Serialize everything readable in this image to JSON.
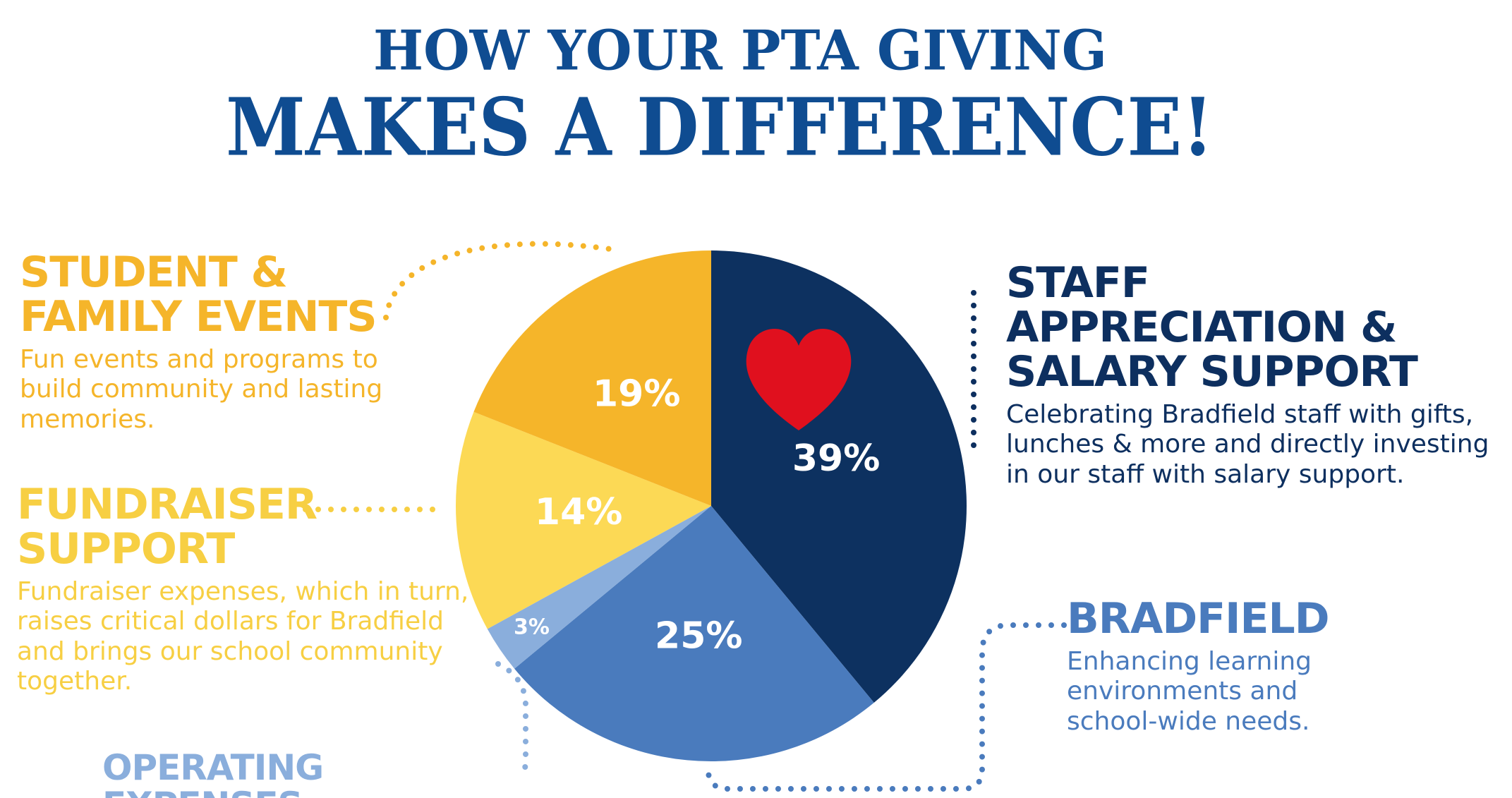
{
  "chart_data": {
    "type": "pie",
    "title": "HOW YOUR PTA GIVING",
    "subtitle": "MAKES A DIFFERENCE!",
    "categories": [
      "STAFF APPRECIATION & SALARY SUPPORT",
      "BRADFIELD",
      "OPERATING EXPENSES",
      "FUNDRAISER SUPPORT",
      "STUDENT & FAMILY EVENTS"
    ],
    "values": [
      39,
      25,
      3,
      14,
      19
    ],
    "value_labels": [
      "39%",
      "25%",
      "3%",
      "14%",
      "19%"
    ],
    "colors": [
      "#0d3160",
      "#4a7bbd",
      "#8aaedc",
      "#fcd955",
      "#f5b52a"
    ],
    "label_colors": [
      "#0d2f5f",
      "#4a7bbd",
      "#8aaedc",
      "#f7cf43",
      "#f5b52a"
    ],
    "descriptions": [
      "Celebrating Bradfield staff with gifts, lunches & more and directly investing in our staff with salary support.",
      "Enhancing learning environments and school-wide needs.",
      null,
      "Fundraiser expenses, which in turn, raises critical dollars for Bradfield and brings our school community together.",
      "Fun events and programs to build community and lasting memories."
    ]
  }
}
